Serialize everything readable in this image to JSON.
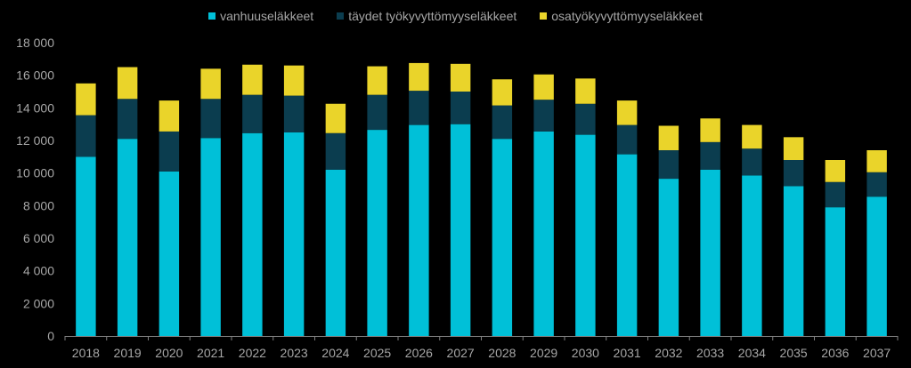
{
  "chart_data": {
    "type": "bar",
    "stacked": true,
    "categories": [
      "2018",
      "2019",
      "2020",
      "2021",
      "2022",
      "2023",
      "2024",
      "2025",
      "2026",
      "2027",
      "2028",
      "2029",
      "2030",
      "2031",
      "2032",
      "2033",
      "2034",
      "2035",
      "2036",
      "2037"
    ],
    "series": [
      {
        "name": "vanhuuseläkkeet",
        "color": "#00c0d8",
        "values": [
          11000,
          12100,
          10100,
          12150,
          12450,
          12500,
          10200,
          12650,
          12950,
          13000,
          12100,
          12550,
          12350,
          11150,
          9650,
          10200,
          9850,
          9200,
          7900,
          8550
        ]
      },
      {
        "name": "täydet työkyvyttömyyseläkkeet",
        "color": "#0b3d4f",
        "values": [
          2550,
          2450,
          2450,
          2400,
          2350,
          2250,
          2250,
          2150,
          2100,
          2000,
          2050,
          1950,
          1900,
          1800,
          1750,
          1700,
          1650,
          1600,
          1550,
          1500
        ]
      },
      {
        "name": "osatyökyvyttömyyseläkkeet",
        "color": "#ead42a",
        "values": [
          1950,
          1950,
          1900,
          1850,
          1850,
          1850,
          1800,
          1750,
          1700,
          1700,
          1600,
          1550,
          1550,
          1500,
          1500,
          1450,
          1450,
          1400,
          1350,
          1350
        ]
      }
    ],
    "ylim": [
      0,
      18000
    ],
    "y_ticks": [
      "0",
      "2 000",
      "4 000",
      "6 000",
      "8 000",
      "10 000",
      "12 000",
      "14 000",
      "16 000",
      "18 000"
    ],
    "legend_position": "top-center",
    "grid": false,
    "background": "#000000",
    "text_color": "#a6a6a6",
    "axis_color": "#808080"
  }
}
